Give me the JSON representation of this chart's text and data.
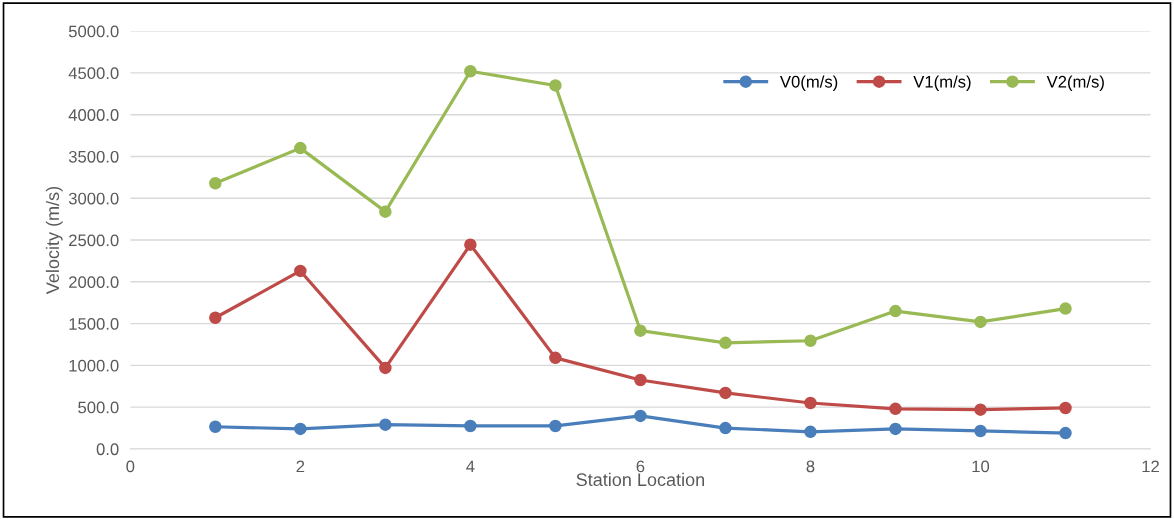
{
  "chart_data": {
    "type": "line",
    "xlabel": "Station Location",
    "ylabel": "Velocity (m/s)",
    "x": [
      1,
      2,
      3,
      4,
      5,
      6,
      7,
      8,
      9,
      10,
      11
    ],
    "series": [
      {
        "name": "V0(m/s)",
        "color": "#4a7ebb",
        "values": [
          265,
          240,
          290,
          275,
          275,
          395,
          250,
          205,
          240,
          215,
          190
        ]
      },
      {
        "name": "V1(m/s)",
        "color": "#be4b48",
        "values": [
          1570,
          2130,
          970,
          2445,
          1090,
          825,
          670,
          550,
          480,
          470,
          490
        ]
      },
      {
        "name": "V2(m/s)",
        "color": "#98b954",
        "values": [
          3180,
          3600,
          2840,
          4520,
          4350,
          1415,
          1270,
          1295,
          1650,
          1520,
          1680
        ]
      }
    ],
    "xlim": [
      0,
      12
    ],
    "xticks": [
      0,
      2,
      4,
      6,
      8,
      10,
      12
    ],
    "ylim": [
      0,
      5000
    ],
    "yticks": [
      {
        "value": 0,
        "label": "0.0"
      },
      {
        "value": 500,
        "label": "500.0"
      },
      {
        "value": 1000,
        "label": "1000.0"
      },
      {
        "value": 1500,
        "label": "1500.0"
      },
      {
        "value": 2000,
        "label": "2000.0"
      },
      {
        "value": 2500,
        "label": "2500.0"
      },
      {
        "value": 3000,
        "label": "3000.0"
      },
      {
        "value": 3500,
        "label": "3500.0"
      },
      {
        "value": 4000,
        "label": "4000.0"
      },
      {
        "value": 4500,
        "label": "4500.0"
      },
      {
        "value": 5000,
        "label": "5000.0"
      }
    ],
    "grid": "y",
    "legend": "top right",
    "marker": "circle",
    "line_style": "solid"
  }
}
